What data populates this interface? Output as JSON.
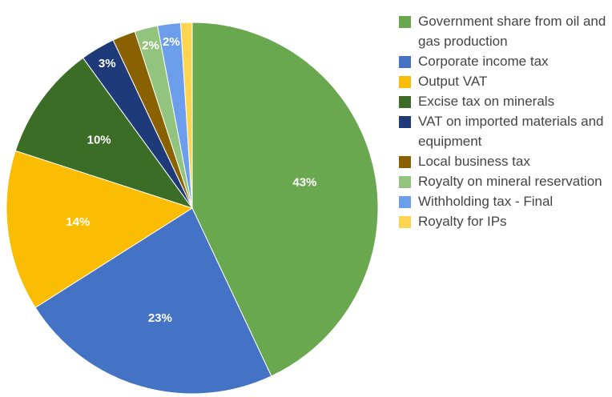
{
  "chart_data": {
    "type": "pie",
    "categories": [
      "Government share from oil and gas production",
      "Corporate income tax",
      "Output VAT",
      "Excise tax on minerals",
      "VAT on imported materials and equipment",
      "Local business tax",
      "Royalty on mineral reservation",
      "Withholding tax - Final",
      "Royalty for IPs"
    ],
    "values": [
      43,
      23,
      14,
      10,
      3,
      2,
      2,
      2,
      1
    ],
    "value_labels": [
      "43%",
      "23%",
      "14%",
      "10%",
      "3%",
      null,
      "2%",
      "2%",
      null
    ],
    "colors": [
      "#6aa84f",
      "#4472c4",
      "#fbbc04",
      "#3b6d26",
      "#1f3a78",
      "#8a6100",
      "#93c47d",
      "#6d9eeb",
      "#ffd54f"
    ],
    "legend": "right"
  }
}
